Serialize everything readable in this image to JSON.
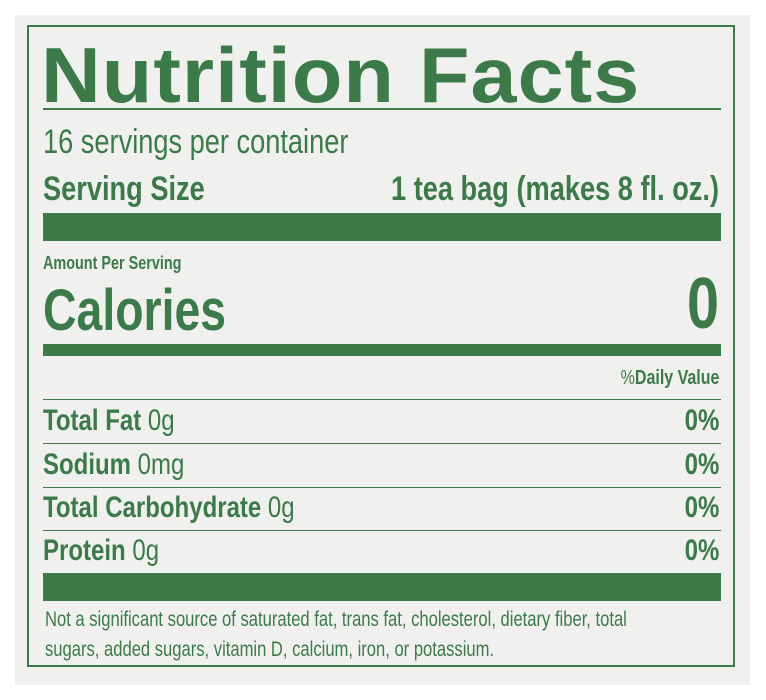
{
  "title": "Nutrition Facts",
  "servings_per_container": "16 servings per container",
  "serving_size": {
    "label": "Serving Size",
    "value": "1 tea bag (makes 8 fl. oz.)"
  },
  "amount_per_serving": "Amount Per Serving",
  "calories": {
    "label": "Calories",
    "value": "0"
  },
  "daily_value_header": {
    "percent": "%",
    "label": "Daily Value"
  },
  "nutrients": [
    {
      "name": "Total Fat",
      "amount": "0g",
      "dv": "0%"
    },
    {
      "name": "Sodium",
      "amount": "0mg",
      "dv": "0%"
    },
    {
      "name": "Total Carbohydrate",
      "amount": "0g",
      "dv": "0%"
    },
    {
      "name": "Protein",
      "amount": "0g",
      "dv": "0%"
    }
  ],
  "footnote_lines": [
    "Not a significant source of saturated fat, trans fat, cholesterol, dietary fiber, total",
    "sugars, added sugars, vitamin D, calcium, iron, or potassium."
  ],
  "colors": {
    "ink": "#3d7a4a",
    "background": "#f0f1ef"
  }
}
